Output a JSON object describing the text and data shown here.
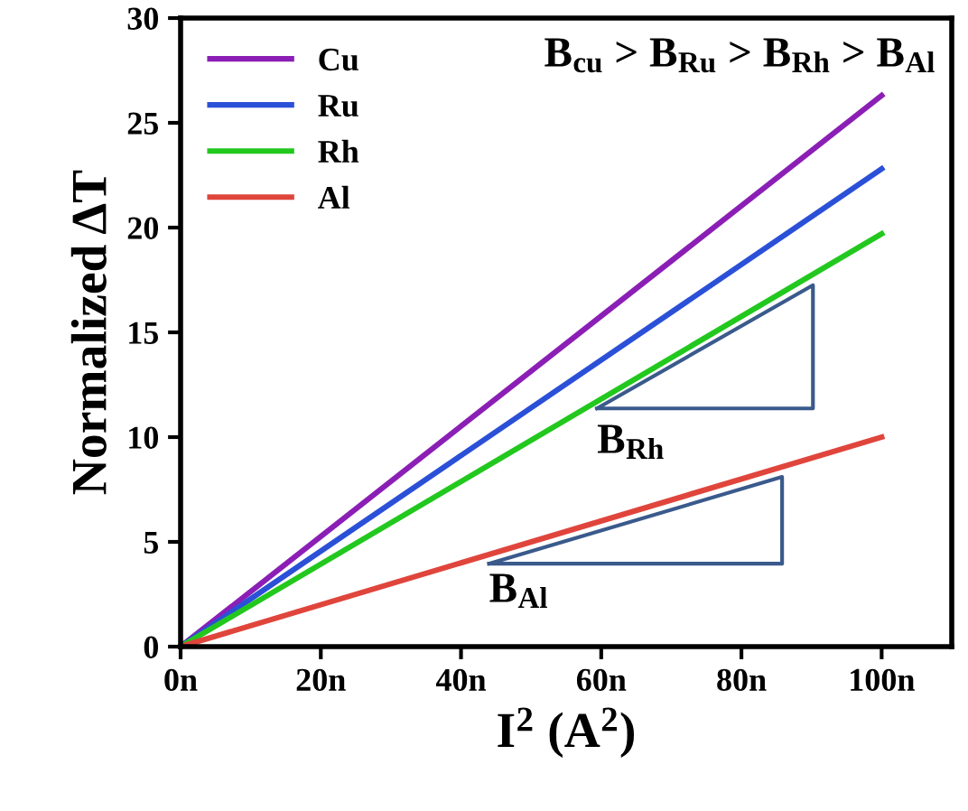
{
  "chart_data": {
    "type": "line",
    "xlabel": "I$^{2}$ (A$^{2}$)",
    "ylabel": "Normalized ΔT",
    "xlim": [
      0,
      110
    ],
    "ylim": [
      0,
      30
    ],
    "xticks": [
      {
        "value": 0,
        "label": "0n"
      },
      {
        "value": 20,
        "label": "20n"
      },
      {
        "value": 40,
        "label": "40n"
      },
      {
        "value": 60,
        "label": "60n"
      },
      {
        "value": 80,
        "label": "80n"
      },
      {
        "value": 100,
        "label": "100n"
      }
    ],
    "yticks": [
      0,
      5,
      10,
      15,
      20,
      25,
      30
    ],
    "x": [
      0,
      100
    ],
    "series": [
      {
        "name": "Cu",
        "color": "#8b1fb5",
        "values": [
          0,
          26.3
        ]
      },
      {
        "name": "Ru",
        "color": "#2b50d8",
        "values": [
          0,
          22.8
        ]
      },
      {
        "name": "Rh",
        "color": "#22c81e",
        "values": [
          0,
          19.7
        ]
      },
      {
        "name": "Al",
        "color": "#e0453c",
        "values": [
          0,
          10.0
        ]
      }
    ],
    "annotations": [
      "B$_{cu}$ > B$_{Ru}$ > B$_{Rh}$ > B$_{Al}$",
      "B$_{Rh}$",
      "B$_{Al}$"
    ],
    "legend": "top left",
    "grid": false,
    "marker": "none",
    "line_style": "solid"
  }
}
